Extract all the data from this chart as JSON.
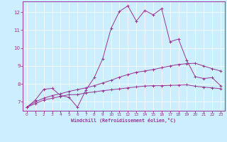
{
  "xlabel": "Windchill (Refroidissement éolien,°C)",
  "background_color": "#cceeff",
  "line_color": "#993399",
  "xlim": [
    -0.5,
    23.5
  ],
  "ylim": [
    6.5,
    12.6
  ],
  "xticks": [
    0,
    1,
    2,
    3,
    4,
    5,
    6,
    7,
    8,
    9,
    10,
    11,
    12,
    13,
    14,
    15,
    16,
    17,
    18,
    19,
    20,
    21,
    22,
    23
  ],
  "yticks": [
    7,
    8,
    9,
    10,
    11,
    12
  ],
  "series": [
    [
      6.7,
      6.9,
      7.1,
      7.2,
      7.3,
      7.4,
      7.4,
      7.5,
      7.55,
      7.62,
      7.67,
      7.72,
      7.78,
      7.83,
      7.88,
      7.9,
      7.9,
      7.92,
      7.93,
      7.95,
      7.87,
      7.82,
      7.78,
      7.73
    ],
    [
      6.7,
      7.0,
      7.2,
      7.35,
      7.45,
      7.58,
      7.68,
      7.78,
      7.9,
      8.05,
      8.2,
      8.38,
      8.52,
      8.65,
      8.72,
      8.8,
      8.9,
      9.0,
      9.08,
      9.13,
      9.15,
      9.0,
      8.85,
      8.72
    ],
    [
      6.7,
      7.1,
      7.7,
      7.75,
      7.35,
      7.25,
      6.7,
      7.65,
      8.35,
      9.4,
      11.1,
      12.05,
      12.35,
      11.5,
      12.1,
      11.85,
      12.2,
      10.35,
      10.5,
      9.3,
      8.4,
      8.3,
      8.35,
      7.9
    ]
  ]
}
